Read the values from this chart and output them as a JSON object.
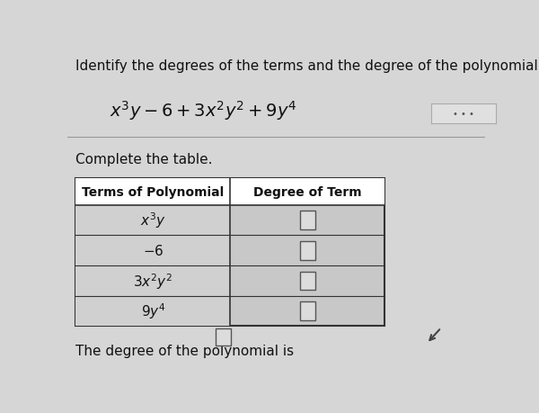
{
  "title_text": "Identify the degrees of the terms and the degree of the polynomial.",
  "complete_table_text": "Complete the table.",
  "col1_header": "Terms of Polynomial",
  "col2_header": "Degree of Term",
  "background_color": "#d6d6d6",
  "cell_bg": "#c8c8c8",
  "left_col_bg": "#d0d0d0",
  "header_bg": "#ffffff",
  "border_color": "#333333",
  "text_color": "#111111",
  "font_size_title": 11,
  "font_size_poly": 14,
  "font_size_table": 11,
  "font_size_footer": 11,
  "dots_button_color": "#e0e0e0"
}
